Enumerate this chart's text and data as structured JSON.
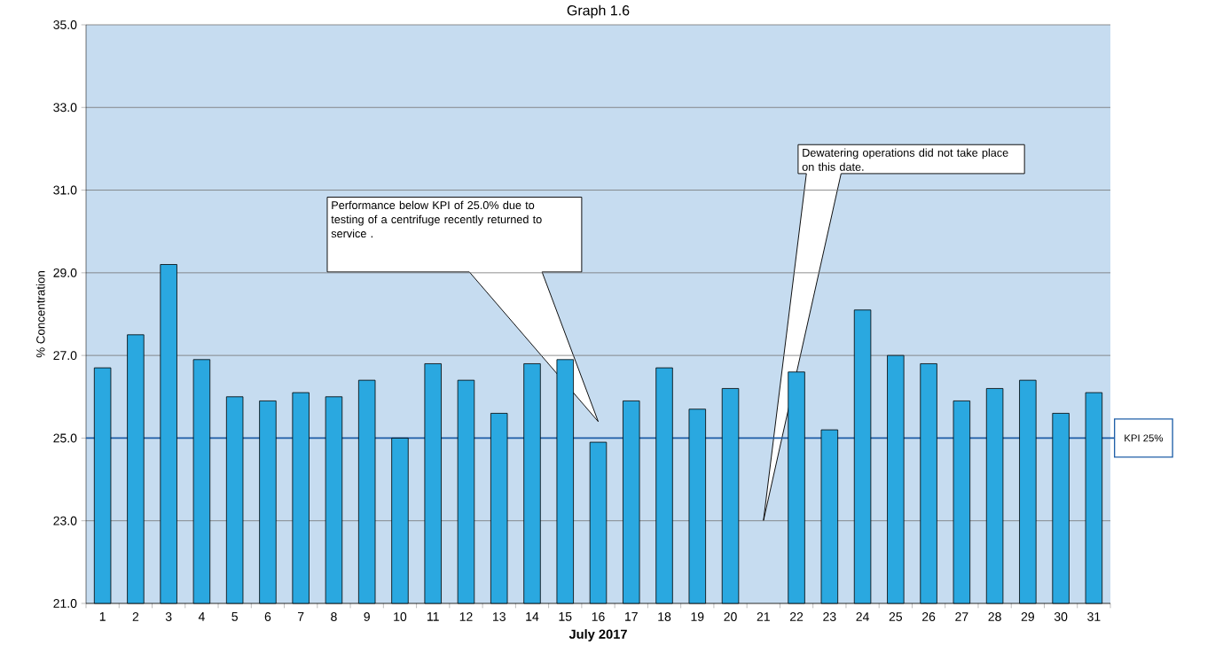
{
  "chart_data": {
    "type": "bar",
    "title": "Graph 1.6",
    "xlabel": "July 2017",
    "ylabel": "% Concentration",
    "categories": [
      "1",
      "2",
      "3",
      "4",
      "5",
      "6",
      "7",
      "8",
      "9",
      "10",
      "11",
      "12",
      "13",
      "14",
      "15",
      "16",
      "17",
      "18",
      "19",
      "20",
      "21",
      "22",
      "23",
      "24",
      "25",
      "26",
      "27",
      "28",
      "29",
      "30",
      "31"
    ],
    "values": [
      26.7,
      27.5,
      29.2,
      26.9,
      26.0,
      25.9,
      26.1,
      26.0,
      26.4,
      25.0,
      26.8,
      26.4,
      25.6,
      26.8,
      26.9,
      24.9,
      25.9,
      26.7,
      25.7,
      26.2,
      null,
      26.6,
      25.2,
      28.1,
      27.0,
      26.8,
      25.9,
      26.2,
      26.4,
      25.6,
      26.1
    ],
    "color": "#2aa8e0",
    "ylim": [
      21,
      35
    ],
    "yticks": [
      {
        "value": 21,
        "label": "21.0"
      },
      {
        "value": 23,
        "label": "23.0"
      },
      {
        "value": 25,
        "label": "25.0"
      },
      {
        "value": 27,
        "label": "27.0"
      },
      {
        "value": 29,
        "label": "29.0"
      },
      {
        "value": 31,
        "label": "31.0"
      },
      {
        "value": 33,
        "label": "33.0"
      },
      {
        "value": 35,
        "label": "35.0"
      }
    ],
    "grid": "y",
    "ref_lines": [
      {
        "axis": "y",
        "value": 25,
        "label": "KPI 25%",
        "color": "#1f5fa8"
      }
    ],
    "annotations": [
      "Performance below KPI of 25.0% due to testing of a centrifuge recently returned to service .",
      "Dewatering operations did not take place on this date."
    ]
  }
}
